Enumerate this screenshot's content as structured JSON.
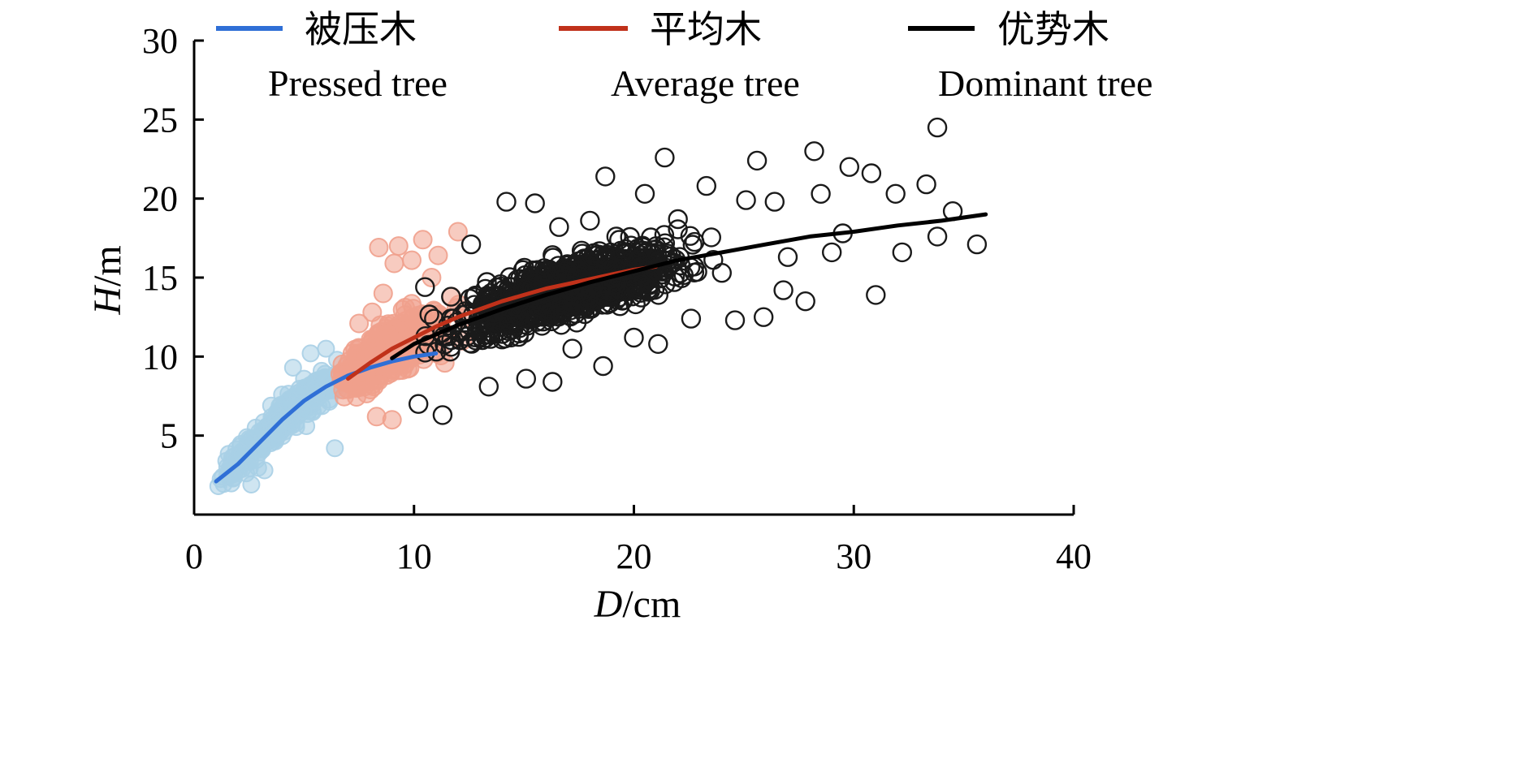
{
  "chart_data": {
    "type": "scatter",
    "xlabel_var": "D",
    "xlabel_unit": "/cm",
    "ylabel_var": "H",
    "ylabel_unit": "/m",
    "xlim": [
      0,
      40
    ],
    "ylim": [
      0,
      30
    ],
    "x_ticks": [
      0,
      10,
      20,
      30,
      40
    ],
    "y_ticks": [
      5,
      10,
      15,
      20,
      25,
      30
    ],
    "grid": false,
    "legend_position": "top",
    "series": [
      {
        "key": "pressed",
        "name_cn": "被压木",
        "name_en": "Pressed tree",
        "point_color": "#a8cfe6",
        "line_color": "#2f6fd6",
        "x_range": [
          1,
          11
        ],
        "fit": [
          [
            1.0,
            2.1
          ],
          [
            2,
            3.2
          ],
          [
            3,
            4.6
          ],
          [
            4,
            6.0
          ],
          [
            5,
            7.2
          ],
          [
            6,
            8.1
          ],
          [
            7,
            8.8
          ],
          [
            8,
            9.3
          ],
          [
            9,
            9.7
          ],
          [
            10,
            10.0
          ],
          [
            11,
            10.2
          ]
        ],
        "scatter": [
          [
            1.1,
            1.8
          ],
          [
            1.3,
            2.4
          ],
          [
            1.6,
            2.9
          ],
          [
            1.9,
            3.3
          ],
          [
            2.2,
            3.8
          ],
          [
            2.4,
            4.9
          ],
          [
            2.8,
            5.5
          ],
          [
            3.1,
            4.1
          ],
          [
            3.5,
            6.9
          ],
          [
            3.8,
            5.2
          ],
          [
            4.0,
            7.6
          ],
          [
            4.2,
            6.3
          ],
          [
            4.5,
            9.3
          ],
          [
            4.8,
            7.0
          ],
          [
            5.0,
            8.6
          ],
          [
            5.3,
            10.2
          ],
          [
            5.5,
            7.9
          ],
          [
            5.8,
            9.1
          ],
          [
            6.0,
            10.5
          ],
          [
            6.2,
            8.4
          ],
          [
            6.4,
            4.2
          ],
          [
            6.5,
            9.8
          ],
          [
            3.2,
            2.8
          ],
          [
            2.6,
            1.9
          ],
          [
            5.1,
            5.6
          ]
        ]
      },
      {
        "key": "average",
        "name_cn": "平均木",
        "name_en": "Average tree",
        "point_color": "#f0a08c",
        "line_color": "#c0311a",
        "x_range": [
          7,
          21
        ],
        "fit": [
          [
            7,
            8.6
          ],
          [
            8,
            9.6
          ],
          [
            9,
            10.5
          ],
          [
            10,
            11.2
          ],
          [
            11,
            11.9
          ],
          [
            12,
            12.5
          ],
          [
            13,
            13.0
          ],
          [
            14,
            13.5
          ],
          [
            15,
            13.9
          ],
          [
            16,
            14.3
          ],
          [
            17,
            14.6
          ],
          [
            18,
            14.9
          ],
          [
            19,
            15.2
          ],
          [
            20,
            15.5
          ],
          [
            21,
            15.7
          ]
        ],
        "scatter": [
          [
            7.2,
            10.2
          ],
          [
            7.5,
            12.1
          ],
          [
            7.8,
            9.0
          ],
          [
            8.1,
            12.8
          ],
          [
            8.4,
            16.9
          ],
          [
            8.6,
            14.0
          ],
          [
            8.9,
            11.2
          ],
          [
            9.1,
            15.9
          ],
          [
            9.3,
            17.0
          ],
          [
            9.6,
            13.1
          ],
          [
            9.9,
            16.1
          ],
          [
            10.2,
            12.6
          ],
          [
            10.4,
            17.4
          ],
          [
            10.8,
            15.0
          ],
          [
            11.1,
            16.4
          ],
          [
            11.4,
            9.6
          ],
          [
            11.7,
            13.8
          ],
          [
            12.0,
            17.9
          ],
          [
            12.2,
            11.0
          ],
          [
            8.3,
            6.2
          ],
          [
            9.0,
            6.0
          ]
        ]
      },
      {
        "key": "dominant",
        "name_cn": "优势木",
        "name_en": "Dominant tree",
        "point_color": "#1a1a1a",
        "line_color": "#000000",
        "x_range": [
          9,
          36
        ],
        "fit": [
          [
            9,
            9.9
          ],
          [
            10,
            10.8
          ],
          [
            12,
            12.0
          ],
          [
            14,
            13.0
          ],
          [
            16,
            13.9
          ],
          [
            18,
            14.7
          ],
          [
            20,
            15.4
          ],
          [
            22,
            16.1
          ],
          [
            24,
            16.6
          ],
          [
            26,
            17.1
          ],
          [
            28,
            17.6
          ],
          [
            30,
            17.9
          ],
          [
            32,
            18.3
          ],
          [
            34,
            18.6
          ],
          [
            36,
            19.0
          ]
        ],
        "scatter": [
          [
            10.2,
            7.0
          ],
          [
            10.5,
            14.4
          ],
          [
            11.3,
            6.3
          ],
          [
            12.6,
            17.1
          ],
          [
            13.4,
            8.1
          ],
          [
            14.2,
            19.8
          ],
          [
            15.1,
            8.6
          ],
          [
            15.5,
            19.7
          ],
          [
            16.3,
            8.4
          ],
          [
            16.6,
            18.2
          ],
          [
            17.2,
            10.5
          ],
          [
            18.0,
            18.6
          ],
          [
            18.7,
            21.4
          ],
          [
            18.6,
            9.4
          ],
          [
            19.2,
            17.6
          ],
          [
            20.0,
            11.2
          ],
          [
            20.5,
            20.3
          ],
          [
            21.1,
            10.8
          ],
          [
            21.4,
            22.6
          ],
          [
            22.0,
            18.7
          ],
          [
            22.6,
            12.4
          ],
          [
            23.3,
            20.8
          ],
          [
            24.0,
            15.3
          ],
          [
            24.6,
            12.3
          ],
          [
            25.1,
            19.9
          ],
          [
            25.6,
            22.4
          ],
          [
            25.9,
            12.5
          ],
          [
            26.4,
            19.8
          ],
          [
            27.0,
            16.3
          ],
          [
            27.8,
            13.5
          ],
          [
            28.2,
            23.0
          ],
          [
            28.5,
            20.3
          ],
          [
            29.0,
            16.6
          ],
          [
            29.8,
            22.0
          ],
          [
            30.8,
            21.6
          ],
          [
            31.0,
            13.9
          ],
          [
            31.9,
            20.3
          ],
          [
            32.2,
            16.6
          ],
          [
            33.3,
            20.9
          ],
          [
            33.8,
            24.5
          ],
          [
            33.8,
            17.6
          ],
          [
            34.5,
            19.2
          ],
          [
            35.6,
            17.1
          ],
          [
            29.5,
            17.8
          ],
          [
            26.8,
            14.2
          ]
        ]
      }
    ]
  }
}
